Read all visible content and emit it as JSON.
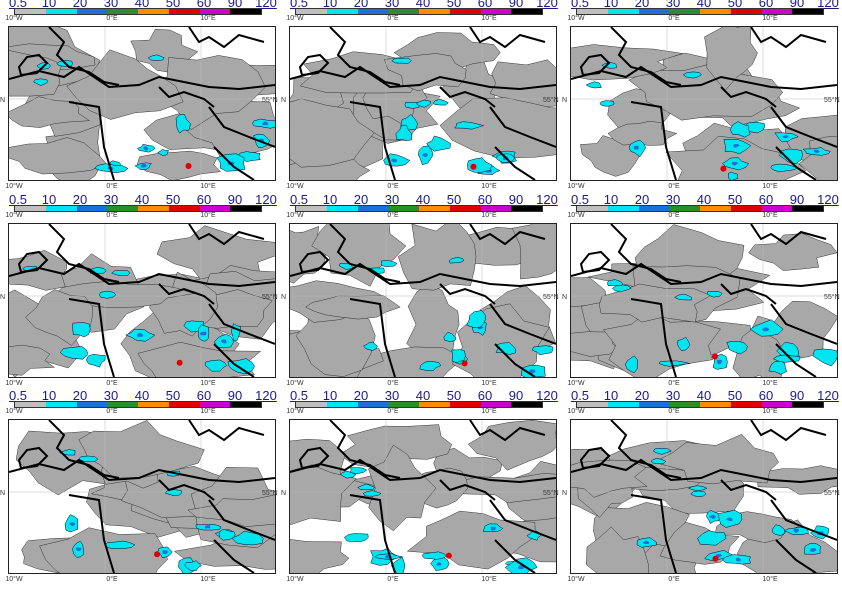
{
  "colorbar": {
    "labels": [
      "0.5",
      "10",
      "20",
      "30",
      "40",
      "50",
      "60",
      "90",
      "120"
    ],
    "colors": [
      "#bfbfbf",
      "#00e5ee",
      "#1e6fd9",
      "#2e8b2e",
      "#ff8c00",
      "#e00000",
      "#cc00cc",
      "#000000"
    ]
  },
  "axes": {
    "lon_labels": [
      "10°W",
      "0°E",
      "10°E"
    ],
    "lat_label_left": "N",
    "lat_label_right": "55°N"
  },
  "colors": {
    "land_precip": "#a8a8a8",
    "coast": "#000000",
    "grid": "#bbbbbb"
  },
  "panels": [
    {
      "id": 1
    },
    {
      "id": 2
    },
    {
      "id": 3
    },
    {
      "id": 4
    },
    {
      "id": 5
    },
    {
      "id": 6
    },
    {
      "id": 7
    },
    {
      "id": 8
    },
    {
      "id": 9
    }
  ]
}
